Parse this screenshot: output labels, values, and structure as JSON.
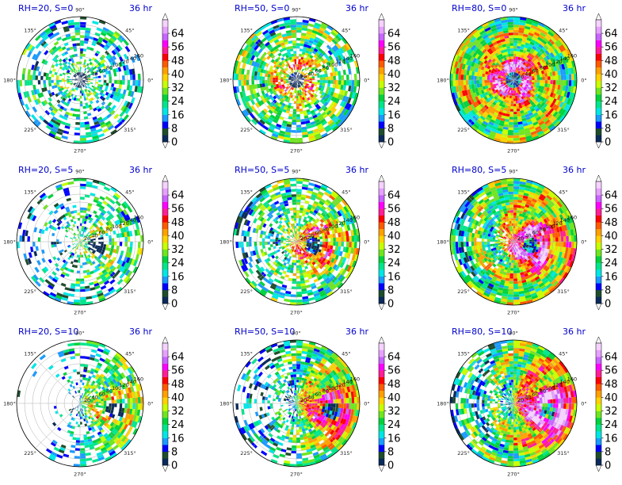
{
  "chart_data": {
    "type": "heatmap",
    "projection": "polar",
    "time_label": "36 hr",
    "angle_ticks": [
      "0°",
      "45°",
      "90°",
      "135°",
      "180°",
      "225°",
      "270°",
      "315°"
    ],
    "radial_ticks": [
      "20",
      "40",
      "60",
      "80",
      "100",
      "120",
      "140",
      "160"
    ],
    "radial_max": 160,
    "colorbar": {
      "ticks": [
        "0",
        "8",
        "16",
        "24",
        "32",
        "40",
        "48",
        "56",
        "64"
      ],
      "min": 0,
      "max": 64,
      "step": 4,
      "colors": [
        "#0a2a5a",
        "#1f4d2c",
        "#0000ff",
        "#1a9bff",
        "#00e6e6",
        "#00e68c",
        "#00d23c",
        "#6ee61e",
        "#c8ff00",
        "#ffd200",
        "#ffa000",
        "#ff5a00",
        "#ff0000",
        "#ff1e96",
        "#ff00ff",
        "#c864ff",
        "#e6a0ff",
        "#f5d2ff"
      ]
    },
    "panels": [
      {
        "title": "RH=20, S=0",
        "rh": 20,
        "s": 0
      },
      {
        "title": "RH=50, S=0",
        "rh": 50,
        "s": 0
      },
      {
        "title": "RH=80, S=0",
        "rh": 80,
        "s": 0
      },
      {
        "title": "RH=20, S=5",
        "rh": 20,
        "s": 5
      },
      {
        "title": "RH=50, S=5",
        "rh": 50,
        "s": 5
      },
      {
        "title": "RH=80, S=5",
        "rh": 80,
        "s": 5
      },
      {
        "title": "RH=20, S=10",
        "rh": 20,
        "s": 10
      },
      {
        "title": "RH=50, S=10",
        "rh": 50,
        "s": 10
      },
      {
        "title": "RH=80, S=10",
        "rh": 80,
        "s": 10
      }
    ]
  }
}
